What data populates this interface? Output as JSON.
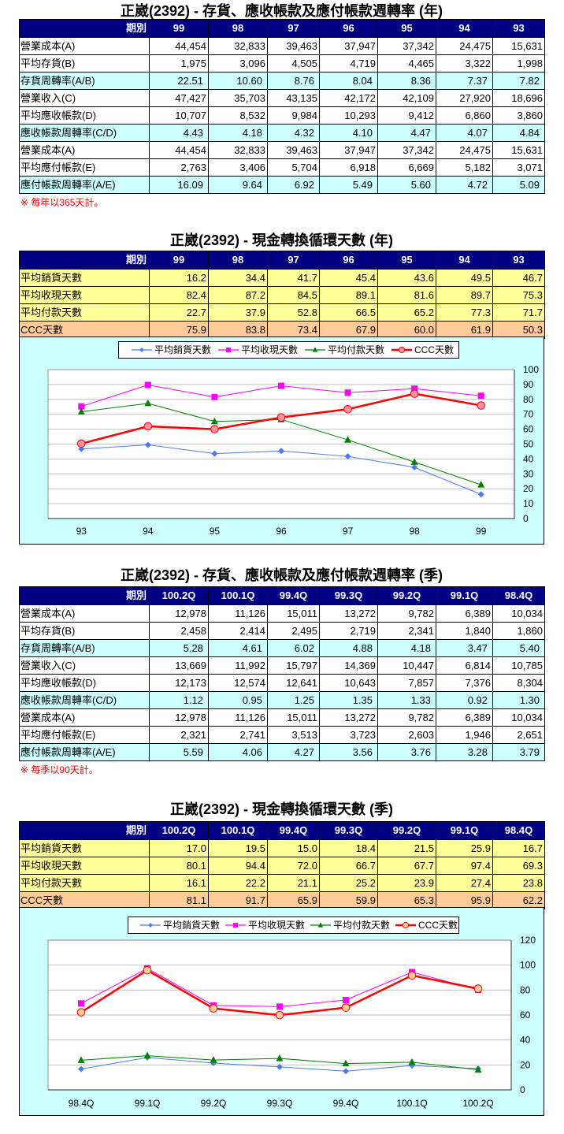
{
  "sections": {
    "annual_turnover": {
      "title": "正崴(2392) - 存貨、應收帳款及應付帳款週轉率 (年)",
      "header_label": "期別",
      "periods": [
        "99",
        "98",
        "97",
        "96",
        "95",
        "94",
        "93"
      ],
      "rows": [
        {
          "label": "營業成本(A)",
          "type": "normal",
          "values": [
            "44,454",
            "32,833",
            "39,463",
            "37,947",
            "37,342",
            "24,475",
            "15,631"
          ]
        },
        {
          "label": "平均存貨(B)",
          "type": "normal",
          "values": [
            "1,975",
            "3,096",
            "4,505",
            "4,719",
            "4,465",
            "3,322",
            "1,998"
          ]
        },
        {
          "label": "存貨周轉率(A/B)",
          "type": "ratio",
          "values": [
            "22.51",
            "10.60",
            "8.76",
            "8.04",
            "8.36",
            "7.37",
            "7.82"
          ]
        },
        {
          "label": "營業收入(C)",
          "type": "normal",
          "values": [
            "47,427",
            "35,703",
            "43,135",
            "42,172",
            "42,109",
            "27,920",
            "18,696"
          ]
        },
        {
          "label": "平均應收帳款(D)",
          "type": "normal",
          "values": [
            "10,707",
            "8,532",
            "9,984",
            "10,293",
            "9,412",
            "6,860",
            "3,860"
          ]
        },
        {
          "label": "應收帳款周轉率(C/D)",
          "type": "ratio",
          "values": [
            "4.43",
            "4.18",
            "4.32",
            "4.10",
            "4.47",
            "4.07",
            "4.84"
          ]
        },
        {
          "label": "營業成本(A)",
          "type": "normal",
          "values": [
            "44,454",
            "32,833",
            "39,463",
            "37,947",
            "37,342",
            "24,475",
            "15,631"
          ]
        },
        {
          "label": "平均應付帳款(E)",
          "type": "normal",
          "values": [
            "2,763",
            "3,406",
            "5,704",
            "6,918",
            "6,669",
            "5,182",
            "3,071"
          ]
        },
        {
          "label": "應付帳款周轉率(A/E)",
          "type": "ratio",
          "values": [
            "16.09",
            "9.64",
            "6.92",
            "5.49",
            "5.60",
            "4.72",
            "5.09"
          ]
        }
      ],
      "note": "※ 每年以365天計。"
    },
    "annual_ccc": {
      "title": "正崴(2392) - 現金轉換循環天數 (年)",
      "header_label": "期別",
      "periods": [
        "99",
        "98",
        "97",
        "96",
        "95",
        "94",
        "93"
      ],
      "rows": [
        {
          "label": "平均銷貨天數",
          "type": "days",
          "values": [
            "16.2",
            "34.4",
            "41.7",
            "45.4",
            "43.6",
            "49.5",
            "46.7"
          ]
        },
        {
          "label": "平均收現天數",
          "type": "days",
          "values": [
            "82.4",
            "87.2",
            "84.5",
            "89.1",
            "81.6",
            "89.7",
            "75.3"
          ]
        },
        {
          "label": "平均付款天數",
          "type": "days",
          "values": [
            "22.7",
            "37.9",
            "52.8",
            "66.5",
            "65.2",
            "77.3",
            "71.7"
          ]
        },
        {
          "label": "CCC天數",
          "type": "ccc",
          "values": [
            "75.9",
            "83.8",
            "73.4",
            "67.9",
            "60.0",
            "61.9",
            "50.3"
          ]
        }
      ]
    },
    "quarterly_turnover": {
      "title": "正崴(2392) - 存貨、應收帳款及應付帳款週轉率 (季)",
      "header_label": "期別",
      "periods": [
        "100.2Q",
        "100.1Q",
        "99.4Q",
        "99.3Q",
        "99.2Q",
        "99.1Q",
        "98.4Q"
      ],
      "rows": [
        {
          "label": "營業成本(A)",
          "type": "normal",
          "values": [
            "12,978",
            "11,126",
            "15,011",
            "13,272",
            "9,782",
            "6,389",
            "10,034"
          ]
        },
        {
          "label": "平均存貨(B)",
          "type": "normal",
          "values": [
            "2,458",
            "2,414",
            "2,495",
            "2,719",
            "2,341",
            "1,840",
            "1,860"
          ]
        },
        {
          "label": "存貨周轉率(A/B)",
          "type": "ratio",
          "values": [
            "5.28",
            "4.61",
            "6.02",
            "4.88",
            "4.18",
            "3.47",
            "5.40"
          ]
        },
        {
          "label": "營業收入(C)",
          "type": "normal",
          "values": [
            "13,669",
            "11,992",
            "15,797",
            "14,369",
            "10,447",
            "6,814",
            "10,785"
          ]
        },
        {
          "label": "平均應收帳款(D)",
          "type": "normal",
          "values": [
            "12,173",
            "12,574",
            "12,641",
            "10,643",
            "7,857",
            "7,376",
            "8,304"
          ]
        },
        {
          "label": "應收帳款周轉率(C/D)",
          "type": "ratio",
          "values": [
            "1.12",
            "0.95",
            "1.25",
            "1.35",
            "1.33",
            "0.92",
            "1.30"
          ]
        },
        {
          "label": "營業成本(A)",
          "type": "normal",
          "values": [
            "12,978",
            "11,126",
            "15,011",
            "13,272",
            "9,782",
            "6,389",
            "10,034"
          ]
        },
        {
          "label": "平均應付帳款(E)",
          "type": "normal",
          "values": [
            "2,321",
            "2,741",
            "3,513",
            "3,723",
            "2,603",
            "1,946",
            "2,651"
          ]
        },
        {
          "label": "應付帳款周轉率(A/E)",
          "type": "ratio",
          "values": [
            "5.59",
            "4.06",
            "4.27",
            "3.56",
            "3.76",
            "3.28",
            "3.79"
          ]
        }
      ],
      "note": "※ 每季以90天計。"
    },
    "quarterly_ccc": {
      "title": "正崴(2392) - 現金轉換循環天數 (季)",
      "header_label": "期別",
      "periods": [
        "100.2Q",
        "100.1Q",
        "99.4Q",
        "99.3Q",
        "99.2Q",
        "99.1Q",
        "98.4Q"
      ],
      "rows": [
        {
          "label": "平均銷貨天數",
          "type": "days",
          "values": [
            "17.0",
            "19.5",
            "15.0",
            "18.4",
            "21.5",
            "25.9",
            "16.7"
          ]
        },
        {
          "label": "平均收現天數",
          "type": "days",
          "values": [
            "80.1",
            "94.4",
            "72.0",
            "66.7",
            "67.7",
            "97.4",
            "69.3"
          ]
        },
        {
          "label": "平均付款天數",
          "type": "days",
          "values": [
            "16.1",
            "22.2",
            "21.1",
            "25.2",
            "23.9",
            "27.4",
            "23.8"
          ]
        },
        {
          "label": "CCC天數",
          "type": "ccc",
          "values": [
            "81.1",
            "91.7",
            "65.9",
            "59.9",
            "65.3",
            "95.9",
            "62.2"
          ]
        }
      ]
    }
  },
  "colors": {
    "header_bg": "#000080",
    "header_text": "#FFFFFF",
    "ratio_row_bg": "#CCFFFF",
    "days_row_bg": "#FFFF99",
    "ccc_row_bg": "#FFCC99",
    "chart_bg": "#CCFFFF",
    "note_text": "#FF0000"
  },
  "chart_data": [
    {
      "type": "line",
      "title": "正崴(2392) - 現金轉換循環天數 (年)",
      "xlabel": "",
      "ylabel": "",
      "categories": [
        "93",
        "94",
        "95",
        "96",
        "97",
        "98",
        "99"
      ],
      "series": [
        {
          "key": "avg-sales-days",
          "name": "平均銷貨天數",
          "values": [
            46.7,
            49.5,
            43.6,
            45.4,
            41.7,
            34.4,
            16.2
          ],
          "color": "#4A7BF7",
          "marker": "diamond",
          "marker_fill": "#4A7BF7",
          "line_width": 1
        },
        {
          "key": "avg-collection-days",
          "name": "平均收現天數",
          "values": [
            75.3,
            89.7,
            81.6,
            89.1,
            84.5,
            87.2,
            82.4
          ],
          "color": "#FF00FF",
          "marker": "square",
          "marker_fill": "#FF00FF",
          "line_width": 1
        },
        {
          "key": "avg-payment-days",
          "name": "平均付款天數",
          "values": [
            71.7,
            77.3,
            65.2,
            66.5,
            52.8,
            37.9,
            22.7
          ],
          "color": "#008000",
          "marker": "triangle",
          "marker_fill": "#008000",
          "line_width": 1
        },
        {
          "key": "ccc-days",
          "name": "CCC天數",
          "values": [
            50.3,
            61.9,
            60.0,
            67.9,
            73.4,
            83.8,
            75.9
          ],
          "color": "#FF0000",
          "marker": "circle",
          "marker_fill": "#FF8FA3",
          "line_width": 2.5
        }
      ],
      "ylim": [
        0,
        100
      ],
      "yticks": [
        0,
        10,
        20,
        30,
        40,
        50,
        60,
        70,
        80,
        90,
        100
      ],
      "grid": true,
      "legend_position": "top",
      "y_axis_position": "right"
    },
    {
      "type": "line",
      "title": "正崴(2392) - 現金轉換循環天數 (季)",
      "xlabel": "",
      "ylabel": "",
      "categories": [
        "98.4Q",
        "99.1Q",
        "99.2Q",
        "99.3Q",
        "99.4Q",
        "100.1Q",
        "100.2Q"
      ],
      "series": [
        {
          "key": "avg-sales-days",
          "name": "平均銷貨天數",
          "values": [
            16.7,
            25.9,
            21.5,
            18.4,
            15.0,
            19.5,
            17.0
          ],
          "color": "#4A7BF7",
          "marker": "diamond",
          "marker_fill": "#4A7BF7",
          "line_width": 1
        },
        {
          "key": "avg-collection-days",
          "name": "平均收現天數",
          "values": [
            69.3,
            97.4,
            67.7,
            66.7,
            72.0,
            94.4,
            80.1
          ],
          "color": "#FF00FF",
          "marker": "square",
          "marker_fill": "#FF00FF",
          "line_width": 1
        },
        {
          "key": "avg-payment-days",
          "name": "平均付款天數",
          "values": [
            23.8,
            27.4,
            23.9,
            25.2,
            21.1,
            22.2,
            16.1
          ],
          "color": "#008000",
          "marker": "triangle",
          "marker_fill": "#008000",
          "line_width": 1
        },
        {
          "key": "ccc-days",
          "name": "CCC天數",
          "values": [
            62.2,
            95.9,
            65.3,
            59.9,
            65.9,
            91.7,
            81.1
          ],
          "color": "#FF0000",
          "marker": "circle",
          "marker_fill": "#FFCC99",
          "line_width": 2.5
        }
      ],
      "ylim": [
        0,
        120
      ],
      "yticks": [
        0,
        20,
        40,
        60,
        80,
        100,
        120
      ],
      "grid": true,
      "legend_position": "top",
      "y_axis_position": "right"
    }
  ]
}
